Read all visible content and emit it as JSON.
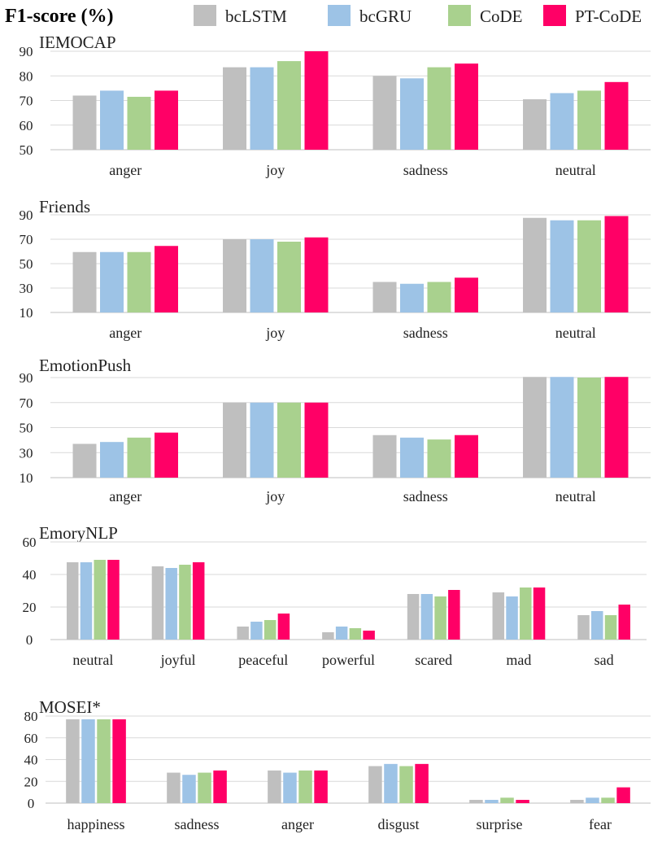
{
  "title": "F1-score (%)",
  "series": [
    {
      "name": "bcLSTM",
      "color": "#bfbfbf"
    },
    {
      "name": "bcGRU",
      "color": "#9dc3e6"
    },
    {
      "name": "CoDE",
      "color": "#a9d18e"
    },
    {
      "name": "PT-CoDE",
      "color": "#ff0066"
    }
  ],
  "chart_data": [
    {
      "type": "bar",
      "title": "IEMOCAP",
      "categories": [
        "anger",
        "joy",
        "sadness",
        "neutral"
      ],
      "ylim": [
        50,
        90
      ],
      "yticks": [
        50,
        60,
        70,
        80,
        90
      ],
      "series": [
        {
          "name": "bcLSTM",
          "values": [
            72,
            83.5,
            80,
            70.5
          ]
        },
        {
          "name": "bcGRU",
          "values": [
            74,
            83.5,
            79,
            73
          ]
        },
        {
          "name": "CoDE",
          "values": [
            71.5,
            86,
            83.5,
            74
          ]
        },
        {
          "name": "PT-CoDE",
          "values": [
            74,
            90,
            85,
            77.5
          ]
        }
      ]
    },
    {
      "type": "bar",
      "title": "Friends",
      "categories": [
        "anger",
        "joy",
        "sadness",
        "neutral"
      ],
      "ylim": [
        10,
        90
      ],
      "yticks": [
        10,
        30,
        50,
        70,
        90
      ],
      "series": [
        {
          "name": "bcLSTM",
          "values": [
            59.5,
            70,
            35,
            87.5
          ]
        },
        {
          "name": "bcGRU",
          "values": [
            59.5,
            70,
            33.5,
            85.5
          ]
        },
        {
          "name": "CoDE",
          "values": [
            59.5,
            68,
            35,
            85.5
          ]
        },
        {
          "name": "PT-CoDE",
          "values": [
            64.5,
            71.5,
            38.5,
            89
          ]
        }
      ]
    },
    {
      "type": "bar",
      "title": "EmotionPush",
      "categories": [
        "anger",
        "joy",
        "sadness",
        "neutral"
      ],
      "ylim": [
        10,
        90
      ],
      "yticks": [
        10,
        30,
        50,
        70,
        90
      ],
      "series": [
        {
          "name": "bcLSTM",
          "values": [
            37,
            70,
            44,
            90.5
          ]
        },
        {
          "name": "bcGRU",
          "values": [
            38.5,
            70,
            42,
            90.5
          ]
        },
        {
          "name": "CoDE",
          "values": [
            42,
            70,
            40.5,
            90
          ]
        },
        {
          "name": "PT-CoDE",
          "values": [
            46,
            70,
            44,
            90.5
          ]
        }
      ]
    },
    {
      "type": "bar",
      "title": "EmoryNLP",
      "categories": [
        "neutral",
        "joyful",
        "peaceful",
        "powerful",
        "scared",
        "mad",
        "sad"
      ],
      "ylim": [
        0,
        60
      ],
      "yticks": [
        0,
        20,
        40,
        60
      ],
      "series": [
        {
          "name": "bcLSTM",
          "values": [
            47.5,
            45,
            8,
            4.5,
            28,
            29,
            15
          ]
        },
        {
          "name": "bcGRU",
          "values": [
            47.5,
            44,
            11,
            8,
            28,
            26.5,
            17.5
          ]
        },
        {
          "name": "CoDE",
          "values": [
            49,
            46,
            12,
            7,
            26.5,
            32,
            15
          ]
        },
        {
          "name": "PT-CoDE",
          "values": [
            49,
            47.5,
            16,
            5.5,
            30.5,
            32,
            21.5
          ]
        }
      ]
    },
    {
      "type": "bar",
      "title": "MOSEI*",
      "categories": [
        "happiness",
        "sadness",
        "anger",
        "disgust",
        "surprise",
        "fear"
      ],
      "ylim": [
        0,
        80
      ],
      "yticks": [
        0,
        20,
        40,
        60,
        80
      ],
      "series": [
        {
          "name": "bcLSTM",
          "values": [
            77,
            28,
            30,
            34,
            3,
            3
          ]
        },
        {
          "name": "bcGRU",
          "values": [
            77,
            26,
            28,
            36,
            3,
            5
          ]
        },
        {
          "name": "CoDE",
          "values": [
            77,
            28,
            30,
            34,
            5,
            5
          ]
        },
        {
          "name": "PT-CoDE",
          "values": [
            77,
            30,
            30,
            36,
            3,
            14.5
          ]
        }
      ]
    }
  ]
}
